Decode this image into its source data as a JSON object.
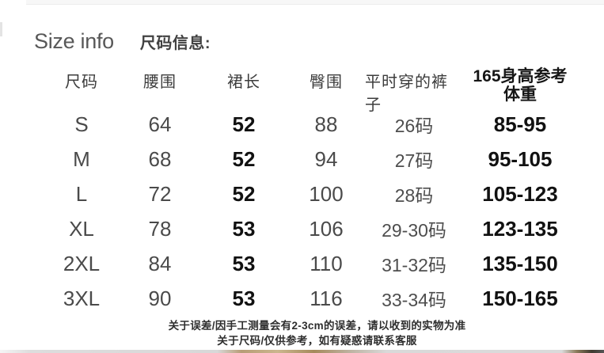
{
  "title": {
    "en": "Size info",
    "zh": "尺码信息:"
  },
  "table": {
    "columns": [
      {
        "key": "size",
        "label": "尺码"
      },
      {
        "key": "waist",
        "label": "腰围"
      },
      {
        "key": "length",
        "label": "裙长"
      },
      {
        "key": "hip",
        "label": "臀围"
      },
      {
        "key": "pants",
        "label": "平时穿的裤子"
      },
      {
        "key": "weight",
        "label": "165身高参考",
        "label2": "体重"
      }
    ],
    "rows": [
      {
        "size": "S",
        "waist": "64",
        "length": "52",
        "hip": "88",
        "pants": "26码",
        "weight": "85-95"
      },
      {
        "size": "M",
        "waist": "68",
        "length": "52",
        "hip": "94",
        "pants": "27码",
        "weight": "95-105"
      },
      {
        "size": "L",
        "waist": "72",
        "length": "52",
        "hip": "100",
        "pants": "28码",
        "weight": "105-123"
      },
      {
        "size": "XL",
        "waist": "78",
        "length": "53",
        "hip": "106",
        "pants": "29-30码",
        "weight": "123-135"
      },
      {
        "size": "2XL",
        "waist": "84",
        "length": "53",
        "hip": "110",
        "pants": "31-32码",
        "weight": "135-150"
      },
      {
        "size": "3XL",
        "waist": "90",
        "length": "53",
        "hip": "116",
        "pants": "33-34码",
        "weight": "150-165"
      }
    ]
  },
  "footer": {
    "line1": "关于误差/因手工测量会有2-3cm的误差，请以收到的实物为准",
    "line2": "关于尺码/仅供参考，如有疑惑请联系客服"
  },
  "colors": {
    "value_gray": "#4a4a4a",
    "value_black": "#111111",
    "header_gray": "#3c3c3c",
    "background": "#ffffff"
  }
}
